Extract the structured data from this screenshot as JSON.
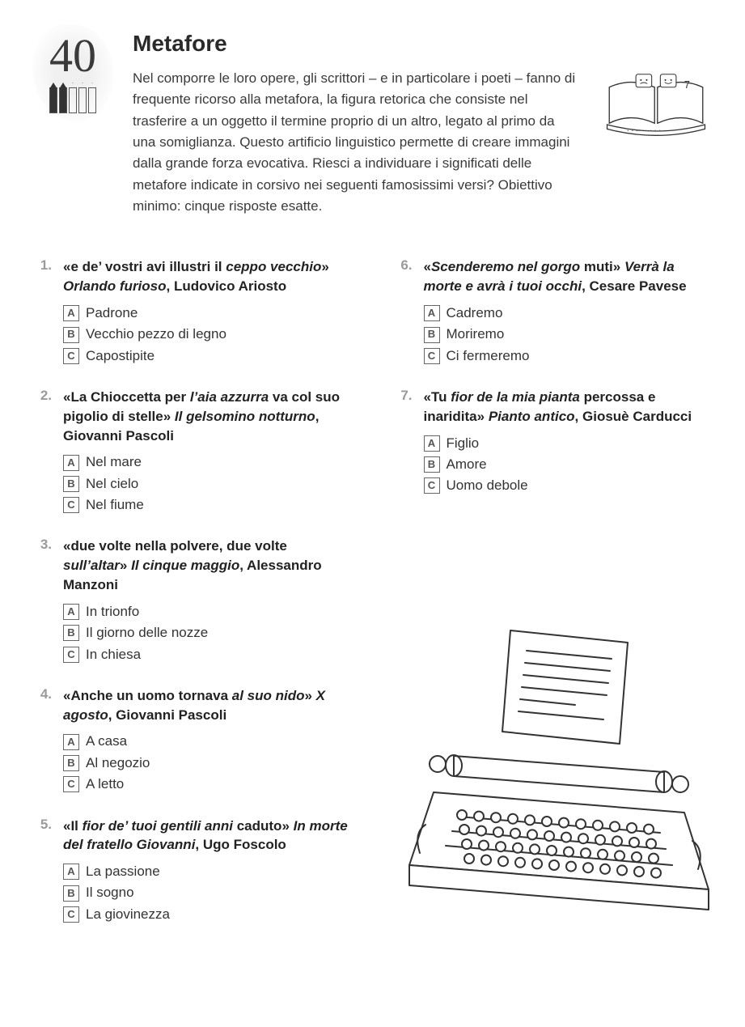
{
  "page_number": "40",
  "title": "Metafore",
  "intro": "Nel comporre le loro opere, gli scrittori – e in particolare i poeti – fanno di frequente ricorso alla metafora, la figura retorica che consiste nel trasferire a un oggetto il termine proprio di un altro, legato al primo da una somiglianza. Questo artificio linguistico permette di creare immagini dalla grande forza evocativa. Riesci a individuare i significati delle metafore indicate in corsivo nei seguenti famosissimi versi? Obiettivo minimo: cinque risposte esatte.",
  "book_dots": "........",
  "book_total": "7",
  "difficulty_pencils": [
    true,
    true,
    false,
    false,
    false
  ],
  "questions_left": [
    {
      "num": "1.",
      "html": "«e de’ vostri avi illustri il <em>ceppo vecchio</em>» <em>Orlando furioso</em>, Ludovico Ariosto",
      "opts": [
        {
          "l": "A",
          "t": "Padrone"
        },
        {
          "l": "B",
          "t": "Vecchio pezzo di legno"
        },
        {
          "l": "C",
          "t": "Capostipite"
        }
      ]
    },
    {
      "num": "2.",
      "html": "«La Chioccetta per <em>l’aia azzurra</em> va col suo pigolio di stelle» <em>Il gelsomino notturno</em>, Giovanni Pascoli",
      "opts": [
        {
          "l": "A",
          "t": "Nel mare"
        },
        {
          "l": "B",
          "t": "Nel cielo"
        },
        {
          "l": "C",
          "t": "Nel fiume"
        }
      ]
    },
    {
      "num": "3.",
      "html": "«due volte nella polvere, due volte <em>sull’altar</em>» <em>Il cinque maggio</em>, Alessandro Manzoni",
      "opts": [
        {
          "l": "A",
          "t": "In trionfo"
        },
        {
          "l": "B",
          "t": "Il giorno delle nozze"
        },
        {
          "l": "C",
          "t": "In chiesa"
        }
      ]
    },
    {
      "num": "4.",
      "html": "«Anche un uomo tornava <em>al suo nido</em>» <em>X agosto</em>, Giovanni Pascoli",
      "opts": [
        {
          "l": "A",
          "t": "A casa"
        },
        {
          "l": "B",
          "t": "Al negozio"
        },
        {
          "l": "C",
          "t": "A letto"
        }
      ]
    },
    {
      "num": "5.",
      "html": "«Il <em>fior de’ tuoi gentili anni</em> caduto» <em>In morte del fratello Giovanni</em>, Ugo Foscolo",
      "opts": [
        {
          "l": "A",
          "t": "La passione"
        },
        {
          "l": "B",
          "t": "Il sogno"
        },
        {
          "l": "C",
          "t": "La giovinezza"
        }
      ]
    }
  ],
  "questions_right": [
    {
      "num": "6.",
      "html": "«<em>Scenderemo nel gorgo</em> muti» <em>Verrà la morte e avrà i tuoi occhi</em>, Cesare Pavese",
      "opts": [
        {
          "l": "A",
          "t": "Cadremo"
        },
        {
          "l": "B",
          "t": "Moriremo"
        },
        {
          "l": "C",
          "t": "Ci fermeremo"
        }
      ]
    },
    {
      "num": "7.",
      "html": "«Tu <em>fior de la mia pianta</em> percossa e inaridita» <em>Pianto antico</em>, Giosuè Carducci",
      "opts": [
        {
          "l": "A",
          "t": "Figlio"
        },
        {
          "l": "B",
          "t": "Amore"
        },
        {
          "l": "C",
          "t": "Uomo debole"
        }
      ]
    }
  ],
  "colors": {
    "text": "#333333",
    "num": "#9a9a9a",
    "border": "#666666",
    "bg": "#ffffff"
  }
}
